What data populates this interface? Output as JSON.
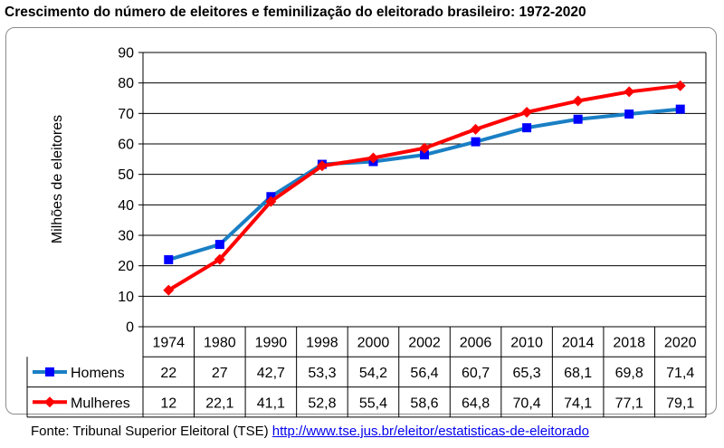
{
  "title": "Crescimento do número de eleitores e feminilização do eleitorado brasileiro: 1972-2020",
  "source": {
    "label": "Fonte: Tribunal Superior Eleitoral (TSE)",
    "link_text": "http://www.tse.jus.br/eleitor/estatisticas-de-eleitorado"
  },
  "chart_data": {
    "type": "line",
    "ylabel": "Milhões de eleitores",
    "ylim": [
      0,
      90
    ],
    "yticks": [
      0,
      10,
      20,
      30,
      40,
      50,
      60,
      70,
      80,
      90
    ],
    "grid": "horizontal",
    "legend": "data-table",
    "categories": [
      "1974",
      "1980",
      "1990",
      "1998",
      "2000",
      "2002",
      "2006",
      "2010",
      "2014",
      "2018",
      "2020"
    ],
    "series": [
      {
        "name": "Homens",
        "color": "#1a7fc4",
        "marker": "square",
        "marker_color": "#0000ff",
        "values": [
          22,
          27,
          42.7,
          53.3,
          54.2,
          56.4,
          60.7,
          65.3,
          68.1,
          69.8,
          71.4
        ],
        "labels": [
          "22",
          "27",
          "42,7",
          "53,3",
          "54,2",
          "56,4",
          "60,7",
          "65,3",
          "68,1",
          "69,8",
          "71,4"
        ]
      },
      {
        "name": "Mulheres",
        "color": "#ff0000",
        "marker": "diamond",
        "marker_color": "#ff0000",
        "values": [
          12,
          22.1,
          41.1,
          52.8,
          55.4,
          58.6,
          64.8,
          70.4,
          74.1,
          77.1,
          79.1
        ],
        "labels": [
          "12",
          "22,1",
          "41,1",
          "52,8",
          "55,4",
          "58,6",
          "64,8",
          "70,4",
          "74,1",
          "77,1",
          "79,1"
        ]
      }
    ]
  }
}
